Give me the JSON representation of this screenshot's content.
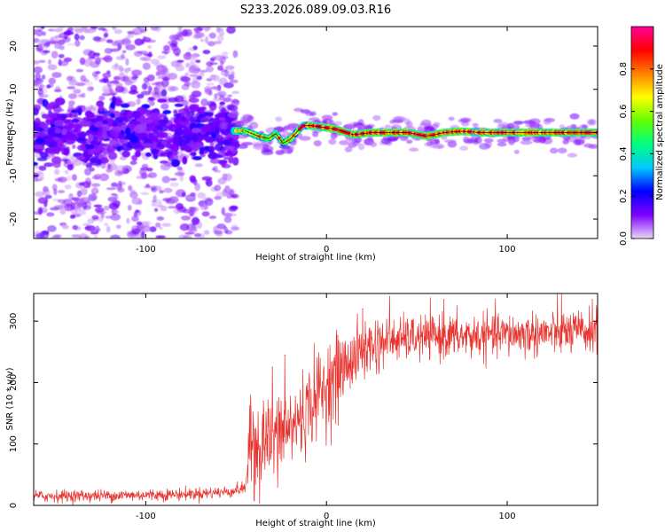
{
  "figure_title": "S233.2026.089.09.03.R16",
  "chart_data": [
    {
      "type": "heatmap",
      "xlabel": "Height of straight line (km)",
      "ylabel": "Frequency (Hz)",
      "xlim": [
        -162,
        150
      ],
      "ylim": [
        -24.5,
        24.5
      ],
      "xticks": [
        "-100",
        "0",
        "100"
      ],
      "yticks": [
        "-20",
        "-10",
        "0",
        "10",
        "20"
      ],
      "colorbar": {
        "label": "Normalized spectral amplitude",
        "range": [
          0,
          1
        ],
        "ticks": [
          "0.0",
          "0.2",
          "0.4",
          "0.6",
          "0.8"
        ],
        "colormap": [
          "#e8d7f5",
          "#7f00ff",
          "#0000ff",
          "#00c8ff",
          "#00ff80",
          "#60ff00",
          "#ffff00",
          "#ff8000",
          "#ff0000",
          "#ff0099"
        ]
      },
      "line_trace": [
        {
          "x": -45,
          "y": 0.4
        },
        {
          "x": -38,
          "y": -0.8
        },
        {
          "x": -32,
          "y": -1.4
        },
        {
          "x": -28,
          "y": -0.2
        },
        {
          "x": -24,
          "y": -2.5
        },
        {
          "x": -20,
          "y": -1.5
        },
        {
          "x": -16,
          "y": 0.3
        },
        {
          "x": -13,
          "y": 1.6
        },
        {
          "x": -8,
          "y": 1.6
        },
        {
          "x": 5,
          "y": 0.8
        },
        {
          "x": 15,
          "y": -0.5
        },
        {
          "x": 25,
          "y": 0.0
        },
        {
          "x": 35,
          "y": 0.0
        },
        {
          "x": 45,
          "y": 0.0
        },
        {
          "x": 55,
          "y": -0.8
        },
        {
          "x": 60,
          "y": -0.5
        },
        {
          "x": 65,
          "y": 0.0
        },
        {
          "x": 75,
          "y": 0.3
        },
        {
          "x": 85,
          "y": 0.0
        },
        {
          "x": 95,
          "y": 0.0
        },
        {
          "x": 110,
          "y": 0.0
        },
        {
          "x": 130,
          "y": 0.0
        },
        {
          "x": 150,
          "y": 0.0
        }
      ]
    },
    {
      "type": "line",
      "xlabel": "Height of straight line (km)",
      "ylabel": "SNR (10 * v/v)",
      "xlim": [
        -162,
        150
      ],
      "ylim": [
        0,
        345
      ],
      "xticks": [
        "-100",
        "0",
        "100"
      ],
      "yticks": [
        "0",
        "100",
        "200",
        "300"
      ],
      "color": "#e8332f",
      "series": [
        {
          "points": [
            {
              "x": -162,
              "y": 15
            },
            {
              "x": -120,
              "y": 16
            },
            {
              "x": -80,
              "y": 18
            },
            {
              "x": -55,
              "y": 22
            },
            {
              "x": -45,
              "y": 28
            },
            {
              "x": -43,
              "y": 80
            },
            {
              "x": -40,
              "y": 120
            },
            {
              "x": -36,
              "y": 90
            },
            {
              "x": -33,
              "y": 110
            },
            {
              "x": -30,
              "y": 100
            },
            {
              "x": -27,
              "y": 120
            },
            {
              "x": -20,
              "y": 125
            },
            {
              "x": -15,
              "y": 140
            },
            {
              "x": -10,
              "y": 160
            },
            {
              "x": -5,
              "y": 180
            },
            {
              "x": 0,
              "y": 195
            },
            {
              "x": 5,
              "y": 210
            },
            {
              "x": 10,
              "y": 225
            },
            {
              "x": 15,
              "y": 240
            },
            {
              "x": 20,
              "y": 250
            },
            {
              "x": 25,
              "y": 260
            },
            {
              "x": 30,
              "y": 265
            },
            {
              "x": 40,
              "y": 270
            },
            {
              "x": 60,
              "y": 275
            },
            {
              "x": 80,
              "y": 275
            },
            {
              "x": 100,
              "y": 278
            },
            {
              "x": 120,
              "y": 280
            },
            {
              "x": 140,
              "y": 282
            },
            {
              "x": 150,
              "y": 283
            }
          ],
          "spikes": [
            {
              "x": -35,
              "y": 170
            },
            {
              "x": -30,
              "y": 225
            },
            {
              "x": -23,
              "y": 245
            },
            {
              "x": 20,
              "y": 320
            },
            {
              "x": 35,
              "y": 340
            },
            {
              "x": 65,
              "y": 335
            },
            {
              "x": 130,
              "y": 345
            },
            {
              "x": 147,
              "y": 335
            },
            {
              "x": -40,
              "y": 8
            },
            {
              "x": -27,
              "y": 30
            }
          ]
        }
      ]
    }
  ]
}
